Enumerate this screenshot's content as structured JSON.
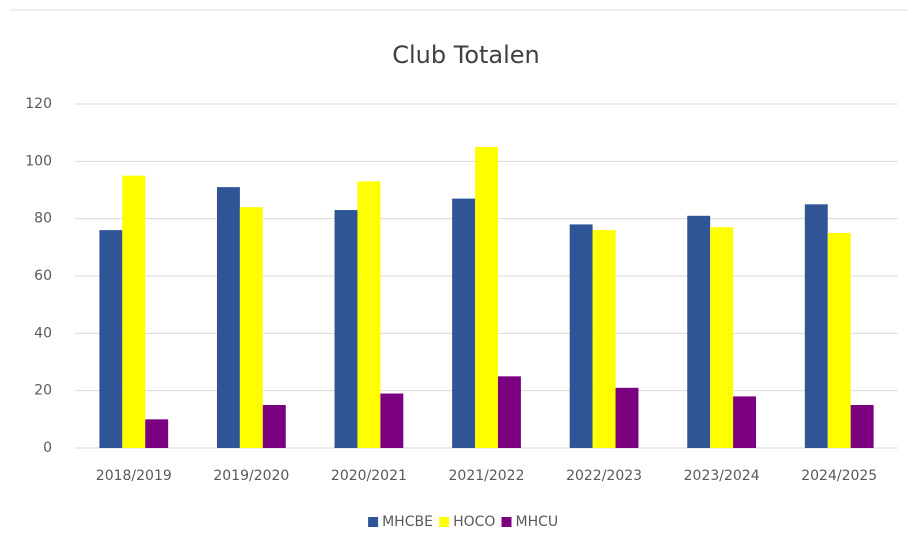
{
  "chart_data": {
    "type": "bar",
    "title": "Club Totalen",
    "categories": [
      "2018/2019",
      "2019/2020",
      "2020/2021",
      "2021/2022",
      "2022/2023",
      "2023/2024",
      "2024/2025"
    ],
    "series": [
      {
        "name": "MHCBE",
        "color": "#2f5597",
        "values": [
          76,
          91,
          83,
          87,
          78,
          81,
          85
        ]
      },
      {
        "name": "HOCO",
        "color": "#ffff00",
        "values": [
          95,
          84,
          93,
          105,
          76,
          77,
          75
        ]
      },
      {
        "name": "MHCU",
        "color": "#7b0080",
        "values": [
          10,
          15,
          19,
          25,
          21,
          18,
          15
        ]
      }
    ],
    "ylim": [
      0,
      120
    ],
    "yticks": [
      0,
      20,
      40,
      60,
      80,
      100,
      120
    ],
    "grid": true,
    "legend": "bottom"
  }
}
